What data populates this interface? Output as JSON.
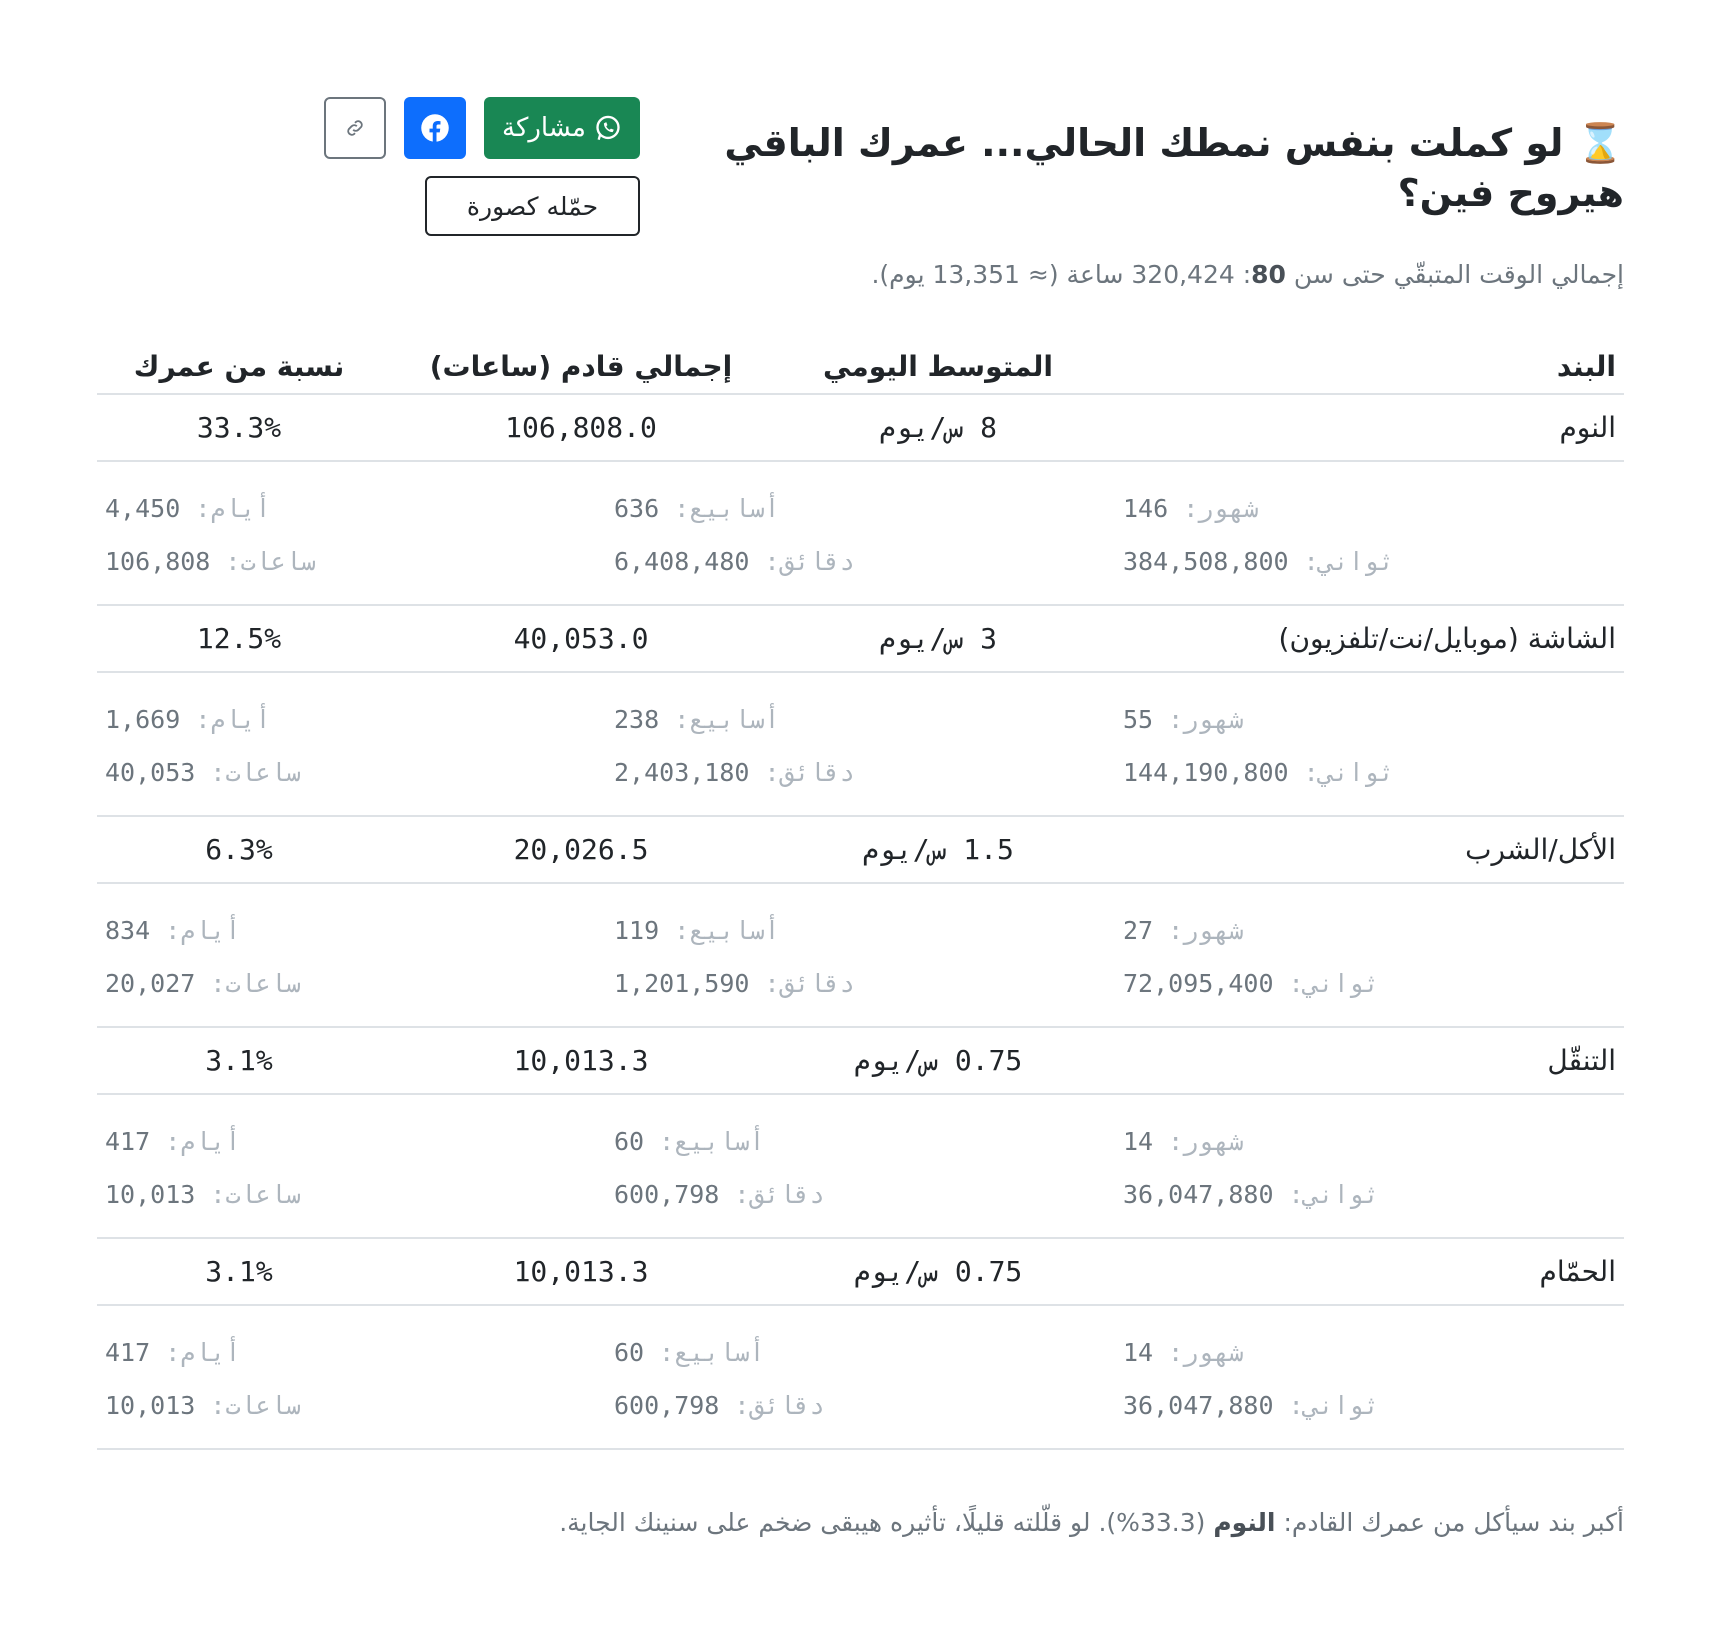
{
  "header": {
    "icon": "hourglass-icon",
    "title": "لو كملت بنفس نمطك الحالي... عمرك الباقي هيروح فين؟",
    "share_whatsapp_label": "مشاركة",
    "download_label": "حمّله كصورة",
    "colors": {
      "whatsapp": "#198754",
      "facebook": "#0d6efd"
    }
  },
  "summary": {
    "prefix": "إجمالي الوقت المتبقّي حتى سن",
    "age": "80",
    "rest": ": 320,424 ساعة (≈ 13,351 يوم)."
  },
  "table": {
    "headers": [
      "البند",
      "المتوسط اليومي",
      "إجمالي قادم (ساعات)",
      "نسبة من عمرك"
    ],
    "labels": {
      "months": "شهور:",
      "weeks": "أسابيع:",
      "days": "أيام:",
      "seconds": "ثواني:",
      "minutes": "دقائق:",
      "hours": "ساعات:"
    },
    "rows": [
      {
        "name": "النوم",
        "avg": "8 س/يوم",
        "total": "106,808.0",
        "pct": "33.3%",
        "months": "146",
        "weeks": "636",
        "days": "4,450",
        "seconds": "384,508,800",
        "minutes": "6,408,480",
        "hours": "106,808"
      },
      {
        "name": "الشاشة (موبايل/نت/تلفزيون)",
        "avg": "3 س/يوم",
        "total": "40,053.0",
        "pct": "12.5%",
        "months": "55",
        "weeks": "238",
        "days": "1,669",
        "seconds": "144,190,800",
        "minutes": "2,403,180",
        "hours": "40,053"
      },
      {
        "name": "الأكل/الشرب",
        "avg": "1.5 س/يوم",
        "total": "20,026.5",
        "pct": "6.3%",
        "months": "27",
        "weeks": "119",
        "days": "834",
        "seconds": "72,095,400",
        "minutes": "1,201,590",
        "hours": "20,027"
      },
      {
        "name": "التنقّل",
        "avg": "0.75 س/يوم",
        "total": "10,013.3",
        "pct": "3.1%",
        "months": "14",
        "weeks": "60",
        "days": "417",
        "seconds": "36,047,880",
        "minutes": "600,798",
        "hours": "10,013"
      },
      {
        "name": "الحمّام",
        "avg": "0.75 س/يوم",
        "total": "10,013.3",
        "pct": "3.1%",
        "months": "14",
        "weeks": "60",
        "days": "417",
        "seconds": "36,047,880",
        "minutes": "600,798",
        "hours": "10,013"
      }
    ]
  },
  "footer": {
    "prefix": "أكبر بند سيأكل من عمرك القادم:",
    "item": "النوم",
    "rest": "(33.3%). لو قلّلته قليلًا، تأثيره هيبقى ضخم على سنينك الجاية."
  }
}
